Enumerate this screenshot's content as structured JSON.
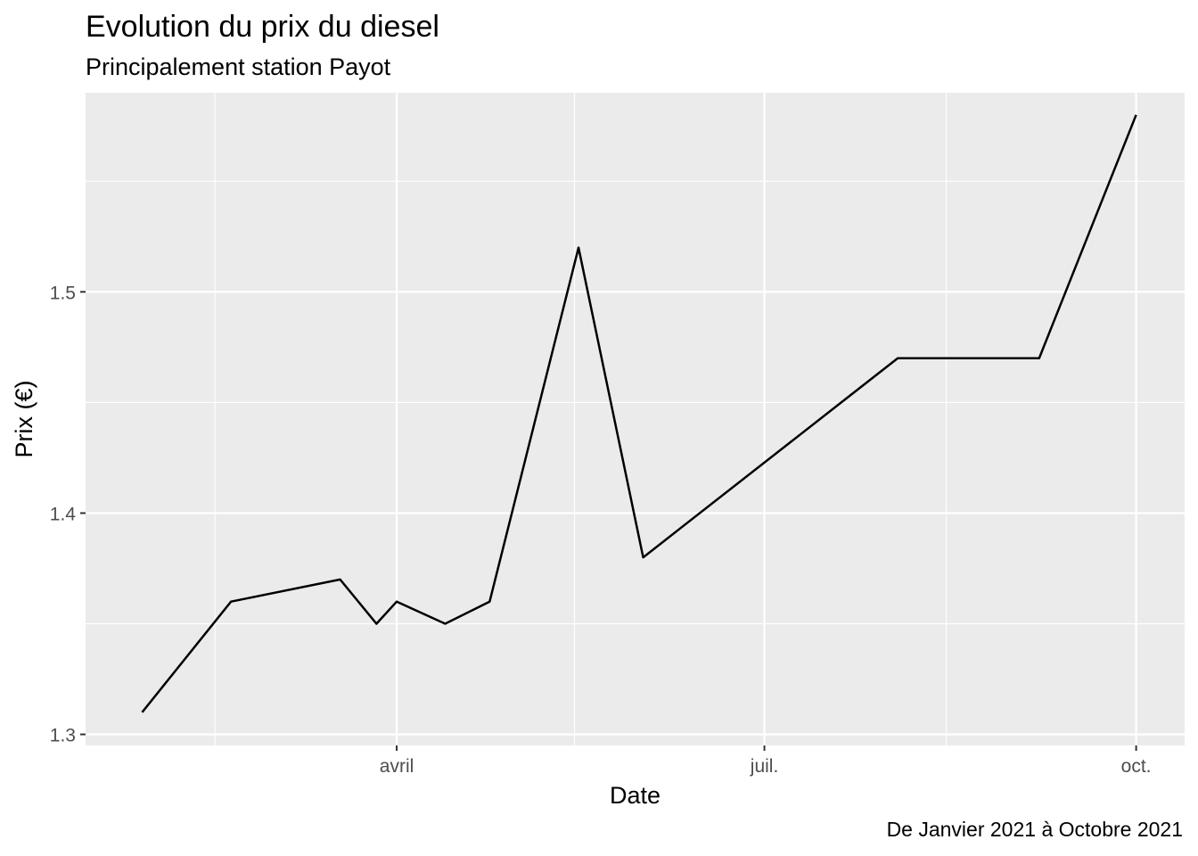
{
  "chart_data": {
    "type": "line",
    "title": "Evolution du prix du diesel",
    "subtitle": "Principalement station Payot",
    "caption": "De Janvier 2021 à Octobre 2021",
    "xlabel": "Date",
    "ylabel": "Prix (€)",
    "x_ticks": [
      {
        "date": "2021-04-01",
        "label": "avril"
      },
      {
        "date": "2021-07-01",
        "label": "juil."
      },
      {
        "date": "2021-10-01",
        "label": "oct."
      }
    ],
    "x_minor_ticks": [
      "2021-02-15",
      "2021-05-15",
      "2021-08-15"
    ],
    "y_ticks": [
      1.3,
      1.4,
      1.5
    ],
    "y_minor_ticks": [
      1.35,
      1.45,
      1.55
    ],
    "xlim": [
      "2021-01-14",
      "2021-10-13"
    ],
    "ylim": [
      1.295,
      1.59
    ],
    "grid": true,
    "panel_color": "#ebebeb",
    "grid_color": "#ffffff",
    "line_color": "#000000",
    "points": [
      {
        "x": "2021-01-28",
        "y": 1.31
      },
      {
        "x": "2021-02-19",
        "y": 1.36
      },
      {
        "x": "2021-03-18",
        "y": 1.37
      },
      {
        "x": "2021-03-27",
        "y": 1.35
      },
      {
        "x": "2021-04-01",
        "y": 1.36
      },
      {
        "x": "2021-04-13",
        "y": 1.35
      },
      {
        "x": "2021-04-24",
        "y": 1.36
      },
      {
        "x": "2021-05-16",
        "y": 1.52
      },
      {
        "x": "2021-06-01",
        "y": 1.38
      },
      {
        "x": "2021-07-20",
        "y": 1.45
      },
      {
        "x": "2021-08-03",
        "y": 1.47
      },
      {
        "x": "2021-09-07",
        "y": 1.47
      },
      {
        "x": "2021-10-01",
        "y": 1.58
      }
    ]
  }
}
